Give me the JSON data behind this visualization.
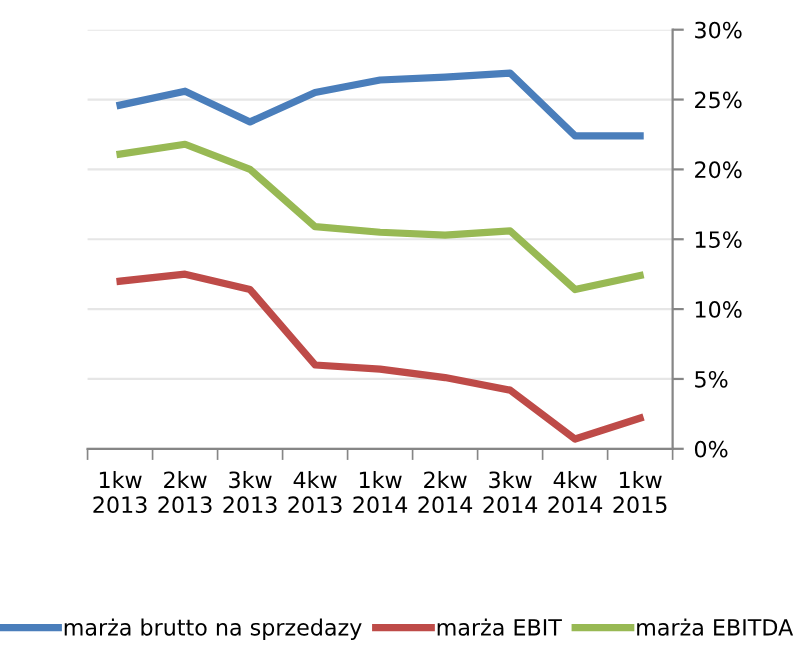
{
  "chart_data": {
    "type": "line",
    "categories": [
      "1kw\n2013",
      "2kw\n2013",
      "3kw\n2013",
      "4kw\n2013",
      "1kw\n2014",
      "2kw\n2014",
      "3kw\n2014",
      "4kw\n2014",
      "1kw\n2015"
    ],
    "series": [
      {
        "name": "marża brutto na sprzedazy",
        "color": "#4a7ebb",
        "values": [
          24.6,
          25.6,
          23.4,
          25.5,
          26.4,
          26.6,
          26.9,
          22.4,
          22.4
        ]
      },
      {
        "name": "marża EBIT",
        "color": "#be4b48",
        "values": [
          12.0,
          12.5,
          11.4,
          6.0,
          5.7,
          5.1,
          4.2,
          0.7,
          2.2
        ]
      },
      {
        "name": "marża EBITDA",
        "color": "#98b954",
        "values": [
          21.1,
          21.8,
          20.0,
          15.9,
          15.5,
          15.3,
          15.6,
          11.4,
          12.4
        ]
      }
    ],
    "ylim": [
      0,
      30
    ],
    "yticks": [
      {
        "value": 0,
        "label": "0%"
      },
      {
        "value": 5,
        "label": "5%"
      },
      {
        "value": 10,
        "label": "10%"
      },
      {
        "value": 15,
        "label": "15%"
      },
      {
        "value": 20,
        "label": "20%"
      },
      {
        "value": 25,
        "label": "25%"
      },
      {
        "value": 30,
        "label": "30%"
      }
    ],
    "grid": "y",
    "legend": "bottom",
    "marker": "none",
    "line_style": "solid"
  }
}
